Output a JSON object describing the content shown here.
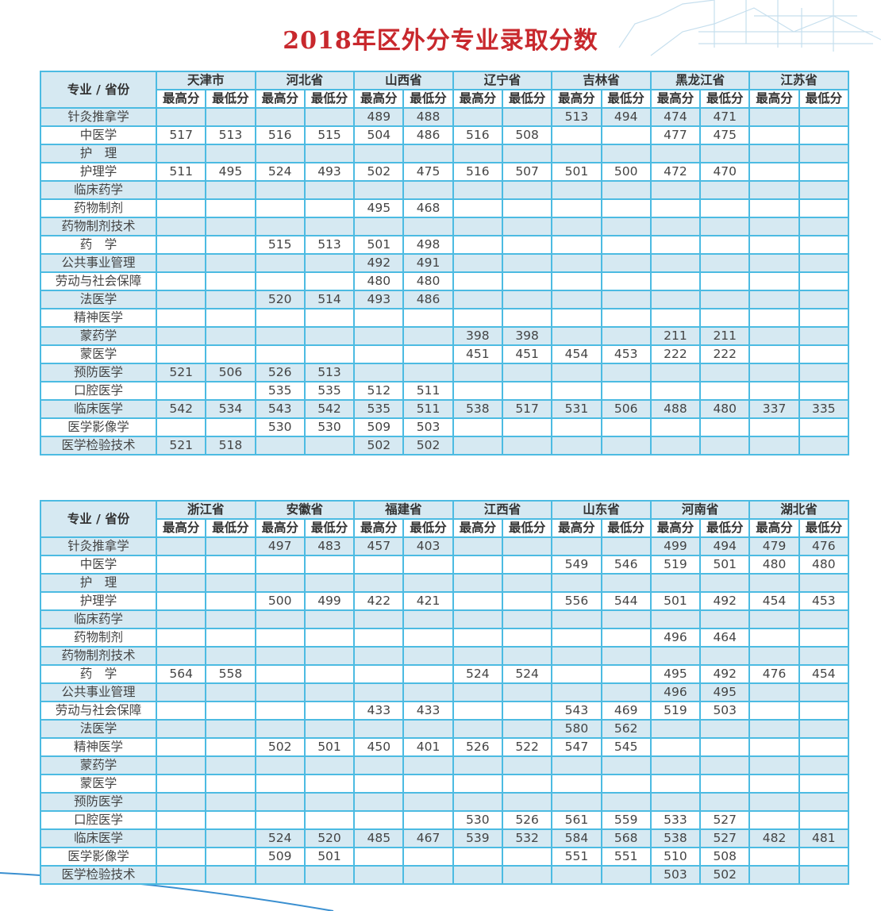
{
  "title": "2018年区外分专业录取分数",
  "colors": {
    "title": "#c8282d",
    "border": "#4cbbe2",
    "row_shade": "#d6e9f2"
  },
  "corner_label": "专业 / 省份",
  "max_label": "最高分",
  "min_label": "最低分",
  "majors": [
    "针灸推拿学",
    "中医学",
    "护　理",
    "护理学",
    "临床药学",
    "药物制剂",
    "药物制剂技术",
    "药　学",
    "公共事业管理",
    "劳动与社会保障",
    "法医学",
    "精神医学",
    "蒙药学",
    "蒙医学",
    "预防医学",
    "口腔医学",
    "临床医学",
    "医学影像学",
    "医学检验技术"
  ],
  "tables": [
    {
      "provinces": [
        "天津市",
        "河北省",
        "山西省",
        "辽宁省",
        "吉林省",
        "黑龙江省",
        "江苏省"
      ],
      "rows": [
        [
          "",
          "",
          "",
          "",
          "489",
          "488",
          "",
          "",
          "513",
          "494",
          "474",
          "471",
          "",
          ""
        ],
        [
          "517",
          "513",
          "516",
          "515",
          "504",
          "486",
          "516",
          "508",
          "",
          "",
          "477",
          "475",
          "",
          ""
        ],
        [
          "",
          "",
          "",
          "",
          "",
          "",
          "",
          "",
          "",
          "",
          "",
          "",
          "",
          ""
        ],
        [
          "511",
          "495",
          "524",
          "493",
          "502",
          "475",
          "516",
          "507",
          "501",
          "500",
          "472",
          "470",
          "",
          ""
        ],
        [
          "",
          "",
          "",
          "",
          "",
          "",
          "",
          "",
          "",
          "",
          "",
          "",
          "",
          ""
        ],
        [
          "",
          "",
          "",
          "",
          "495",
          "468",
          "",
          "",
          "",
          "",
          "",
          "",
          "",
          ""
        ],
        [
          "",
          "",
          "",
          "",
          "",
          "",
          "",
          "",
          "",
          "",
          "",
          "",
          "",
          ""
        ],
        [
          "",
          "",
          "515",
          "513",
          "501",
          "498",
          "",
          "",
          "",
          "",
          "",
          "",
          "",
          ""
        ],
        [
          "",
          "",
          "",
          "",
          "492",
          "491",
          "",
          "",
          "",
          "",
          "",
          "",
          "",
          ""
        ],
        [
          "",
          "",
          "",
          "",
          "480",
          "480",
          "",
          "",
          "",
          "",
          "",
          "",
          "",
          ""
        ],
        [
          "",
          "",
          "520",
          "514",
          "493",
          "486",
          "",
          "",
          "",
          "",
          "",
          "",
          "",
          ""
        ],
        [
          "",
          "",
          "",
          "",
          "",
          "",
          "",
          "",
          "",
          "",
          "",
          "",
          "",
          ""
        ],
        [
          "",
          "",
          "",
          "",
          "",
          "",
          "398",
          "398",
          "",
          "",
          "211",
          "211",
          "",
          ""
        ],
        [
          "",
          "",
          "",
          "",
          "",
          "",
          "451",
          "451",
          "454",
          "453",
          "222",
          "222",
          "",
          ""
        ],
        [
          "521",
          "506",
          "526",
          "513",
          "",
          "",
          "",
          "",
          "",
          "",
          "",
          "",
          "",
          ""
        ],
        [
          "",
          "",
          "535",
          "535",
          "512",
          "511",
          "",
          "",
          "",
          "",
          "",
          "",
          "",
          ""
        ],
        [
          "542",
          "534",
          "543",
          "542",
          "535",
          "511",
          "538",
          "517",
          "531",
          "506",
          "488",
          "480",
          "337",
          "335"
        ],
        [
          "",
          "",
          "530",
          "530",
          "509",
          "503",
          "",
          "",
          "",
          "",
          "",
          "",
          "",
          ""
        ],
        [
          "521",
          "518",
          "",
          "",
          "502",
          "502",
          "",
          "",
          "",
          "",
          "",
          "",
          "",
          ""
        ]
      ]
    },
    {
      "provinces": [
        "浙江省",
        "安徽省",
        "福建省",
        "江西省",
        "山东省",
        "河南省",
        "湖北省"
      ],
      "rows": [
        [
          "",
          "",
          "497",
          "483",
          "457",
          "403",
          "",
          "",
          "",
          "",
          "499",
          "494",
          "479",
          "476"
        ],
        [
          "",
          "",
          "",
          "",
          "",
          "",
          "",
          "",
          "549",
          "546",
          "519",
          "501",
          "480",
          "480"
        ],
        [
          "",
          "",
          "",
          "",
          "",
          "",
          "",
          "",
          "",
          "",
          "",
          "",
          "",
          ""
        ],
        [
          "",
          "",
          "500",
          "499",
          "422",
          "421",
          "",
          "",
          "556",
          "544",
          "501",
          "492",
          "454",
          "453"
        ],
        [
          "",
          "",
          "",
          "",
          "",
          "",
          "",
          "",
          "",
          "",
          "",
          "",
          "",
          ""
        ],
        [
          "",
          "",
          "",
          "",
          "",
          "",
          "",
          "",
          "",
          "",
          "496",
          "464",
          "",
          ""
        ],
        [
          "",
          "",
          "",
          "",
          "",
          "",
          "",
          "",
          "",
          "",
          "",
          "",
          "",
          ""
        ],
        [
          "564",
          "558",
          "",
          "",
          "",
          "",
          "524",
          "524",
          "",
          "",
          "495",
          "492",
          "476",
          "454"
        ],
        [
          "",
          "",
          "",
          "",
          "",
          "",
          "",
          "",
          "",
          "",
          "496",
          "495",
          "",
          ""
        ],
        [
          "",
          "",
          "",
          "",
          "433",
          "433",
          "",
          "",
          "543",
          "469",
          "519",
          "503",
          "",
          ""
        ],
        [
          "",
          "",
          "",
          "",
          "",
          "",
          "",
          "",
          "580",
          "562",
          "",
          "",
          "",
          ""
        ],
        [
          "",
          "",
          "502",
          "501",
          "450",
          "401",
          "526",
          "522",
          "547",
          "545",
          "",
          "",
          "",
          ""
        ],
        [
          "",
          "",
          "",
          "",
          "",
          "",
          "",
          "",
          "",
          "",
          "",
          "",
          "",
          ""
        ],
        [
          "",
          "",
          "",
          "",
          "",
          "",
          "",
          "",
          "",
          "",
          "",
          "",
          "",
          ""
        ],
        [
          "",
          "",
          "",
          "",
          "",
          "",
          "",
          "",
          "",
          "",
          "",
          "",
          "",
          ""
        ],
        [
          "",
          "",
          "",
          "",
          "",
          "",
          "530",
          "526",
          "561",
          "559",
          "533",
          "527",
          "",
          ""
        ],
        [
          "",
          "",
          "524",
          "520",
          "485",
          "467",
          "539",
          "532",
          "584",
          "568",
          "538",
          "527",
          "482",
          "481"
        ],
        [
          "",
          "",
          "509",
          "501",
          "",
          "",
          "",
          "",
          "551",
          "551",
          "510",
          "508",
          "",
          ""
        ],
        [
          "",
          "",
          "",
          "",
          "",
          "",
          "",
          "",
          "",
          "",
          "503",
          "502",
          "",
          ""
        ]
      ]
    }
  ]
}
